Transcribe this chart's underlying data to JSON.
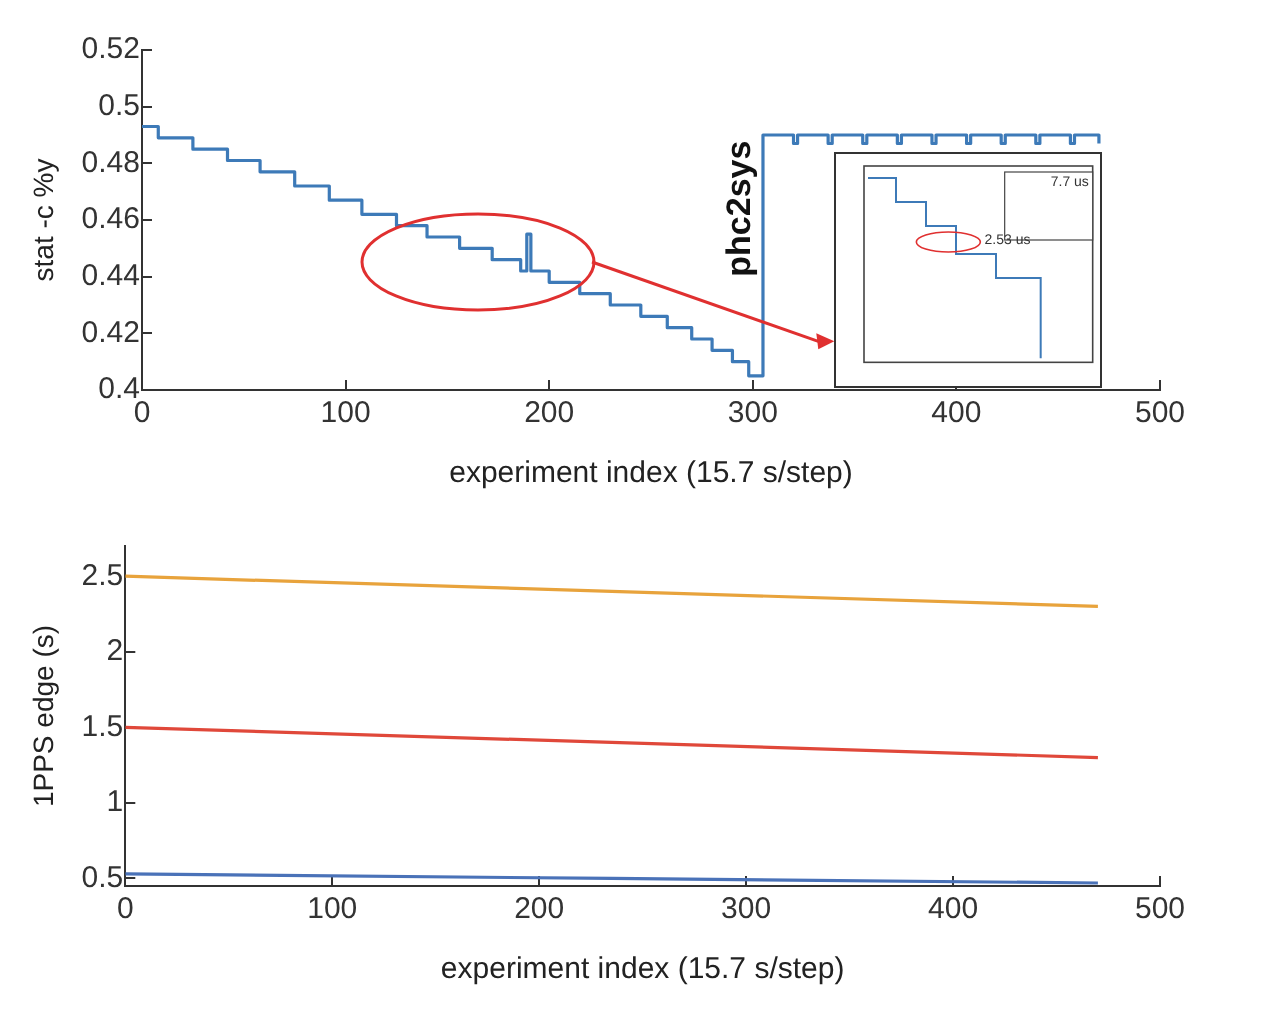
{
  "chart_data": [
    {
      "type": "step",
      "xlabel": "experiment index (15.7 s/step)",
      "ylabel": "stat -c %y",
      "xlim": [
        0,
        500
      ],
      "xticks": [
        0,
        100,
        200,
        300,
        400,
        500
      ],
      "ylim": [
        0.4,
        0.52
      ],
      "yticks": [
        0.4,
        0.42,
        0.44,
        0.46,
        0.48,
        0.5,
        0.52
      ],
      "grid": false,
      "legend": false,
      "annotations": [
        "phc2sys",
        "7.7 us",
        "2.53 us"
      ],
      "series": [
        {
          "color": "#3d7ab8",
          "x": [
            0,
            8,
            25,
            42,
            58,
            75,
            92,
            108,
            125,
            140,
            156,
            172,
            186,
            189,
            191,
            200,
            215,
            230,
            245,
            258,
            270,
            280,
            290,
            298,
            305,
            320,
            322,
            337,
            339,
            354,
            356,
            371,
            373,
            388,
            390,
            405,
            407,
            422,
            424,
            439,
            441,
            456,
            458,
            470
          ],
          "values": [
            0.493,
            0.489,
            0.485,
            0.481,
            0.477,
            0.472,
            0.467,
            0.462,
            0.458,
            0.454,
            0.45,
            0.446,
            0.442,
            0.455,
            0.442,
            0.438,
            0.434,
            0.43,
            0.426,
            0.422,
            0.418,
            0.414,
            0.41,
            0.405,
            0.49,
            0.487,
            0.49,
            0.487,
            0.49,
            0.487,
            0.49,
            0.487,
            0.49,
            0.487,
            0.49,
            0.487,
            0.49,
            0.487,
            0.49,
            0.487,
            0.49,
            0.487,
            0.49,
            0.487
          ]
        }
      ]
    },
    {
      "type": "line",
      "xlabel": "experiment index (15.7 s/step)",
      "ylabel": "1PPS edge (s)",
      "xlim": [
        0,
        500
      ],
      "xticks": [
        0,
        100,
        200,
        300,
        400,
        500
      ],
      "ylim": [
        0.45,
        2.7
      ],
      "yticks": [
        0.5,
        1,
        1.5,
        2,
        2.5
      ],
      "grid": false,
      "legend": false,
      "series": [
        {
          "color": "#e8a33c",
          "x": [
            0,
            235,
            470
          ],
          "values": [
            2.5,
            2.4,
            2.3
          ]
        },
        {
          "color": "#e0483a",
          "x": [
            0,
            235,
            470
          ],
          "values": [
            1.5,
            1.4,
            1.3
          ]
        },
        {
          "color": "#4a72b8",
          "x": [
            0,
            235,
            470
          ],
          "values": [
            0.53,
            0.5,
            0.47
          ]
        }
      ]
    }
  ]
}
